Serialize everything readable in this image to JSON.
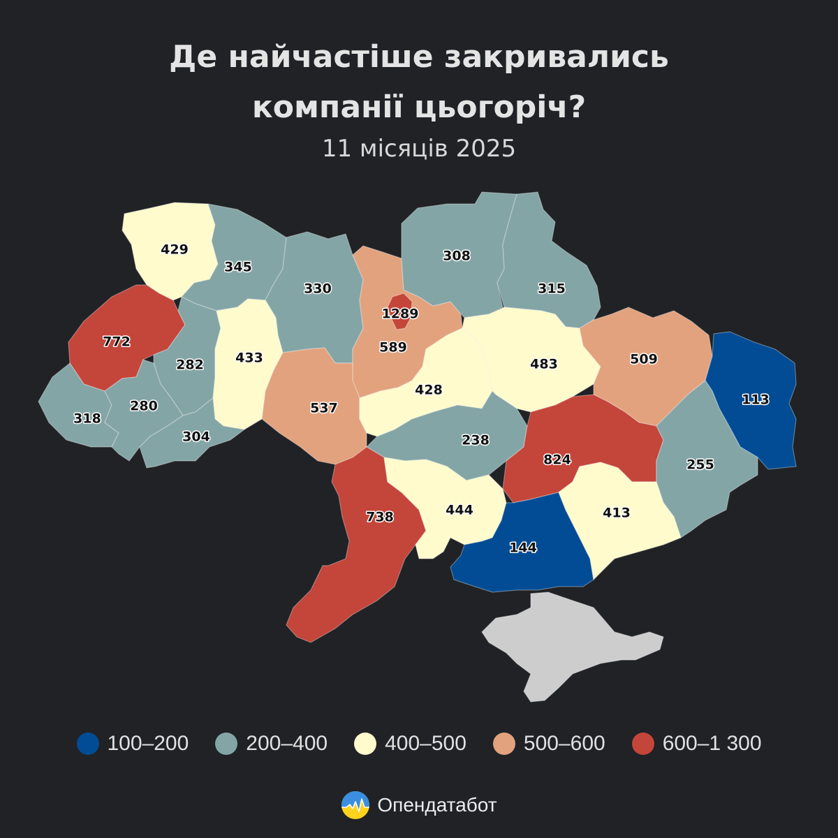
{
  "header": {
    "title_line1": "Де найчастіше закривались",
    "title_line2": "компанії цьогоріч?",
    "subtitle": "11 місяців 2025"
  },
  "legend": [
    {
      "label": "100–200",
      "color": "#014c94"
    },
    {
      "label": "200–400",
      "color": "#84a5a6"
    },
    {
      "label": "400–500",
      "color": "#fffbcc"
    },
    {
      "label": "500–600",
      "color": "#e2a27e"
    },
    {
      "label": "600–1 300",
      "color": "#c4453a"
    }
  ],
  "map": {
    "regions": [
      {
        "id": "volyn",
        "value": "429",
        "color": "#fffbcc"
      },
      {
        "id": "rivne",
        "value": "345",
        "color": "#84a5a6"
      },
      {
        "id": "zhytomyr",
        "value": "330",
        "color": "#84a5a6"
      },
      {
        "id": "kyiv-oblast",
        "value": "589",
        "color": "#e2a27e"
      },
      {
        "id": "kyiv-city",
        "value": "1289",
        "color": "#c4453a"
      },
      {
        "id": "chernihiv",
        "value": "308",
        "color": "#84a5a6"
      },
      {
        "id": "sumy",
        "value": "315",
        "color": "#84a5a6"
      },
      {
        "id": "lviv",
        "value": "772",
        "color": "#c4453a"
      },
      {
        "id": "ternopil",
        "value": "282",
        "color": "#84a5a6"
      },
      {
        "id": "khmelnytskyi",
        "value": "433",
        "color": "#fffbcc"
      },
      {
        "id": "vinnytsia",
        "value": "537",
        "color": "#e2a27e"
      },
      {
        "id": "cherkasy",
        "value": "428",
        "color": "#fffbcc"
      },
      {
        "id": "poltava",
        "value": "483",
        "color": "#fffbcc"
      },
      {
        "id": "kharkiv",
        "value": "509",
        "color": "#e2a27e"
      },
      {
        "id": "luhansk",
        "value": "113",
        "color": "#014c94"
      },
      {
        "id": "zakarpattia",
        "value": "318",
        "color": "#84a5a6"
      },
      {
        "id": "ivano-frankivsk",
        "value": "280",
        "color": "#84a5a6"
      },
      {
        "id": "chernivtsi",
        "value": "304",
        "color": "#84a5a6"
      },
      {
        "id": "kirovohrad",
        "value": "238",
        "color": "#84a5a6"
      },
      {
        "id": "dnipropetrovsk",
        "value": "824",
        "color": "#c4453a"
      },
      {
        "id": "donetsk",
        "value": "255",
        "color": "#84a5a6"
      },
      {
        "id": "odesa",
        "value": "738",
        "color": "#c4453a"
      },
      {
        "id": "mykolaiv",
        "value": "444",
        "color": "#fffbcc"
      },
      {
        "id": "kherson",
        "value": "144",
        "color": "#014c94"
      },
      {
        "id": "zaporizhzhia",
        "value": "413",
        "color": "#fffbcc"
      },
      {
        "id": "crimea",
        "value": "",
        "color": "#cdcdcd"
      }
    ]
  },
  "brand": {
    "name": "Опендатабот"
  }
}
